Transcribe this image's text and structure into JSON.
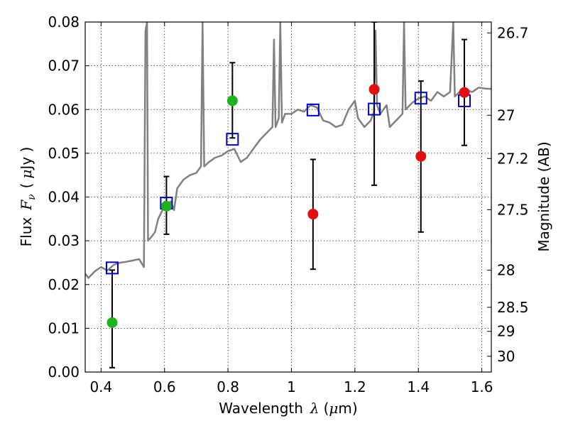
{
  "chart_data": {
    "type": "scatter",
    "xlabel": {
      "prefix": "Wavelength",
      "symbol": "λ",
      "unit_open": "(",
      "unit_mu": "μ",
      "unit_rest": "m)"
    },
    "ylabel": {
      "prefix": "Flux",
      "symbol": "F",
      "subscript": "ν",
      "unit_open": "(",
      "unit_mu": "μ",
      "unit_rest": "Jy )"
    },
    "y2label": "Magnitude (AB)",
    "xlim": [
      0.35,
      1.63
    ],
    "ylim": [
      0.0,
      0.08
    ],
    "grid": true,
    "xticks": [
      0.4,
      0.6,
      0.8,
      1.0,
      1.2,
      1.4,
      1.6
    ],
    "xtick_labels": [
      "0.4",
      "0.6",
      "0.8",
      "1",
      "1.2",
      "1.4",
      "1.6"
    ],
    "yticks": [
      0.0,
      0.01,
      0.02,
      0.03,
      0.04,
      0.05,
      0.06,
      0.07,
      0.08
    ],
    "ytick_labels": [
      "0.00",
      "0.01",
      "0.02",
      "0.03",
      "0.04",
      "0.05",
      "0.06",
      "0.07",
      "0.08"
    ],
    "y2ticks": [
      {
        "label": "26.7",
        "flux": 0.0775
      },
      {
        "label": "27",
        "flux": 0.0587
      },
      {
        "label": "27.2",
        "flux": 0.0488
      },
      {
        "label": "27.5",
        "flux": 0.0371
      },
      {
        "label": "28",
        "flux": 0.0233
      },
      {
        "label": "28.5",
        "flux": 0.0148
      },
      {
        "label": "29",
        "flux": 0.0093
      },
      {
        "label": "30",
        "flux": 0.0036
      }
    ],
    "colors": {
      "template": "#808080",
      "green": "#1cb31c",
      "red": "#e01010",
      "model": "#0000cc",
      "errorbar": "#000000",
      "grid": "#000000"
    },
    "template_spectrum": [
      [
        0.35,
        0.0225
      ],
      [
        0.36,
        0.0215
      ],
      [
        0.38,
        0.023
      ],
      [
        0.4,
        0.024
      ],
      [
        0.42,
        0.0232
      ],
      [
        0.44,
        0.0245
      ],
      [
        0.46,
        0.025
      ],
      [
        0.48,
        0.0252
      ],
      [
        0.5,
        0.0255
      ],
      [
        0.52,
        0.0258
      ],
      [
        0.535,
        0.024
      ],
      [
        0.54,
        0.078
      ],
      [
        0.545,
        0.08
      ],
      [
        0.548,
        0.03
      ],
      [
        0.56,
        0.031
      ],
      [
        0.57,
        0.032
      ],
      [
        0.58,
        0.035
      ],
      [
        0.6,
        0.038
      ],
      [
        0.62,
        0.039
      ],
      [
        0.63,
        0.037
      ],
      [
        0.64,
        0.042
      ],
      [
        0.66,
        0.044
      ],
      [
        0.68,
        0.045
      ],
      [
        0.7,
        0.0455
      ],
      [
        0.715,
        0.047
      ],
      [
        0.72,
        0.08
      ],
      [
        0.725,
        0.047
      ],
      [
        0.74,
        0.048
      ],
      [
        0.76,
        0.049
      ],
      [
        0.78,
        0.0495
      ],
      [
        0.8,
        0.0505
      ],
      [
        0.82,
        0.051
      ],
      [
        0.84,
        0.048
      ],
      [
        0.86,
        0.049
      ],
      [
        0.88,
        0.051
      ],
      [
        0.9,
        0.053
      ],
      [
        0.92,
        0.0545
      ],
      [
        0.94,
        0.056
      ],
      [
        0.945,
        0.076
      ],
      [
        0.95,
        0.056
      ],
      [
        0.96,
        0.058
      ],
      [
        0.965,
        0.08
      ],
      [
        0.97,
        0.057
      ],
      [
        0.98,
        0.059
      ],
      [
        1.0,
        0.059
      ],
      [
        1.02,
        0.06
      ],
      [
        1.04,
        0.0595
      ],
      [
        1.06,
        0.061
      ],
      [
        1.08,
        0.0605
      ],
      [
        1.1,
        0.0575
      ],
      [
        1.12,
        0.057
      ],
      [
        1.14,
        0.056
      ],
      [
        1.16,
        0.0565
      ],
      [
        1.18,
        0.06
      ],
      [
        1.2,
        0.062
      ],
      [
        1.21,
        0.058
      ],
      [
        1.23,
        0.056
      ],
      [
        1.25,
        0.0575
      ],
      [
        1.26,
        0.0595
      ],
      [
        1.265,
        0.078
      ],
      [
        1.27,
        0.061
      ],
      [
        1.28,
        0.059
      ],
      [
        1.3,
        0.061
      ],
      [
        1.31,
        0.056
      ],
      [
        1.33,
        0.0575
      ],
      [
        1.35,
        0.059
      ],
      [
        1.355,
        0.08
      ],
      [
        1.36,
        0.06
      ],
      [
        1.38,
        0.0615
      ],
      [
        1.4,
        0.0625
      ],
      [
        1.42,
        0.063
      ],
      [
        1.44,
        0.062
      ],
      [
        1.46,
        0.064
      ],
      [
        1.48,
        0.063
      ],
      [
        1.5,
        0.064
      ],
      [
        1.51,
        0.08
      ],
      [
        1.515,
        0.063
      ],
      [
        1.53,
        0.064
      ],
      [
        1.55,
        0.0645
      ],
      [
        1.57,
        0.064
      ],
      [
        1.59,
        0.065
      ],
      [
        1.61,
        0.0648
      ],
      [
        1.63,
        0.0647
      ]
    ],
    "observed_green": [
      {
        "x": 0.435,
        "y": 0.0113,
        "err_lo": 0.001,
        "err_hi": 0.0233
      },
      {
        "x": 0.606,
        "y": 0.0379,
        "err_lo": 0.0315,
        "err_hi": 0.0447
      },
      {
        "x": 0.814,
        "y": 0.062,
        "err_lo": 0.0535,
        "err_hi": 0.0707
      }
    ],
    "observed_red": [
      {
        "x": 1.068,
        "y": 0.0361,
        "err_lo": 0.0235,
        "err_hi": 0.0486
      },
      {
        "x": 1.261,
        "y": 0.0646,
        "err_lo": 0.0427,
        "err_hi": 0.08
      },
      {
        "x": 1.408,
        "y": 0.0493,
        "err_lo": 0.032,
        "err_hi": 0.0665
      },
      {
        "x": 1.545,
        "y": 0.0639,
        "err_lo": 0.0518,
        "err_hi": 0.076
      }
    ],
    "model_points": [
      {
        "x": 0.435,
        "y": 0.0238
      },
      {
        "x": 0.606,
        "y": 0.0386
      },
      {
        "x": 0.814,
        "y": 0.0532
      },
      {
        "x": 1.068,
        "y": 0.0599
      },
      {
        "x": 1.261,
        "y": 0.0601
      },
      {
        "x": 1.408,
        "y": 0.0626
      },
      {
        "x": 1.545,
        "y": 0.062
      }
    ]
  }
}
